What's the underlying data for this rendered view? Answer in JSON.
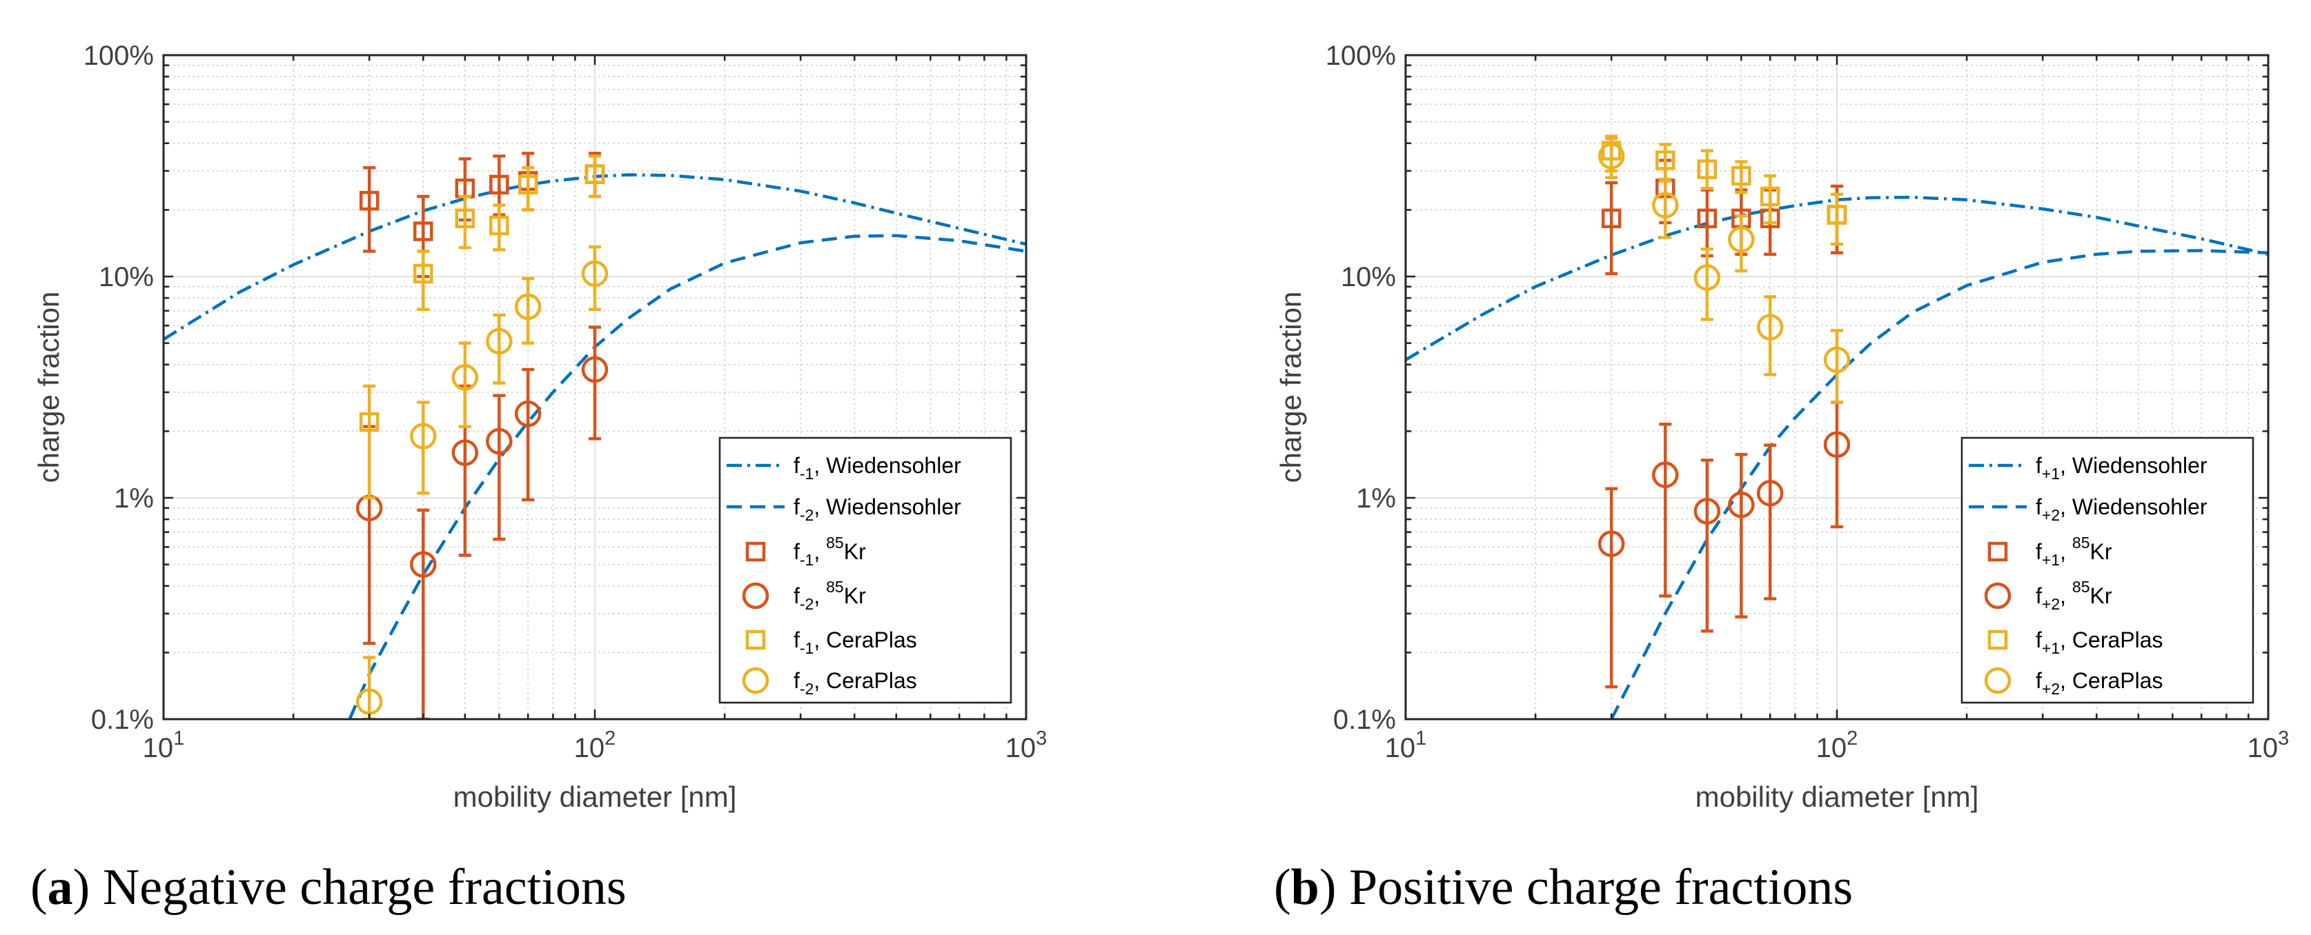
{
  "colors": {
    "wiedensohler": "#0072BD",
    "kr85": "#D95319",
    "ceraplas": "#EDB120",
    "grid": "#d3d3d3",
    "axis": "#262626",
    "text": "#404040"
  },
  "captions": [
    {
      "letter": "a",
      "text": "Negative charge fractions"
    },
    {
      "letter": "b",
      "text": "Positive charge fractions"
    }
  ],
  "chart_data": [
    {
      "type": "scatter",
      "title": "Negative charge fractions",
      "xlabel": "mobility diameter [nm]",
      "ylabel": "charge fraction",
      "xscale": "log",
      "yscale": "log",
      "xlim": [
        10,
        1000
      ],
      "ylim": [
        0.1,
        100
      ],
      "grid": true,
      "x_ticks": [
        {
          "value": 10,
          "base": "10",
          "exp": "1"
        },
        {
          "value": 100,
          "base": "10",
          "exp": "2"
        },
        {
          "value": 1000,
          "base": "10",
          "exp": "3"
        }
      ],
      "y_ticks": [
        {
          "value": 0.1,
          "label": "0.1%"
        },
        {
          "value": 1,
          "label": "1%"
        },
        {
          "value": 10,
          "label": "10%"
        },
        {
          "value": 100,
          "label": "100%"
        }
      ],
      "legend_position": "bottom-right",
      "series": [
        {
          "name": "f-1, Wiedensohler",
          "style": "dashdot",
          "color": "wiedensohler",
          "x": [
            10,
            15,
            20,
            30,
            40,
            50,
            60,
            70,
            80,
            100,
            120,
            150,
            200,
            300,
            400,
            500,
            700,
            1000
          ],
          "y": [
            5.2,
            8.5,
            11.3,
            16.0,
            19.8,
            22.5,
            24.5,
            26.0,
            27.0,
            28.3,
            28.8,
            28.6,
            27.4,
            24.3,
            21.5,
            19.3,
            16.5,
            14.0
          ]
        },
        {
          "name": "f-2, Wiedensohler",
          "style": "dashed",
          "color": "wiedensohler",
          "x": [
            27,
            30,
            35,
            40,
            50,
            60,
            70,
            80,
            100,
            120,
            150,
            200,
            300,
            400,
            500,
            700,
            1000
          ],
          "y": [
            0.1,
            0.16,
            0.28,
            0.45,
            0.9,
            1.5,
            2.2,
            3.0,
            4.8,
            6.5,
            8.8,
            11.5,
            14.2,
            15.2,
            15.3,
            14.5,
            13.0
          ]
        },
        {
          "name": "f-1, 85Kr",
          "marker": "square",
          "color": "kr85",
          "x": [
            30,
            40,
            50,
            60,
            70,
            100
          ],
          "y": [
            22,
            16,
            25,
            26,
            27,
            29
          ],
          "err_low": [
            13,
            10,
            18,
            19,
            20,
            23
          ],
          "err_high": [
            31,
            23,
            34,
            35,
            36,
            36
          ]
        },
        {
          "name": "f-2, 85Kr",
          "marker": "circle",
          "color": "kr85",
          "x": [
            30,
            40,
            50,
            60,
            70,
            100
          ],
          "y": [
            0.9,
            0.5,
            1.6,
            1.8,
            2.4,
            3.8
          ],
          "err_low": [
            0.22,
            0.1,
            0.55,
            0.65,
            0.98,
            1.85
          ],
          "err_high": [
            2.1,
            0.88,
            3.2,
            2.9,
            3.8,
            5.9
          ]
        },
        {
          "name": "f-1, CeraPlas",
          "marker": "square",
          "color": "ceraplas",
          "x": [
            30,
            40,
            50,
            60,
            70,
            100
          ],
          "y": [
            2.2,
            10.3,
            18.3,
            17.0,
            26.0,
            29.0
          ],
          "err_low": [
            1.0,
            7.1,
            13.5,
            13.2,
            20.0,
            23.0
          ],
          "err_high": [
            3.2,
            13.0,
            23.0,
            21.0,
            31.0,
            35.0
          ]
        },
        {
          "name": "f-2, CeraPlas",
          "marker": "circle",
          "color": "ceraplas",
          "x": [
            30,
            40,
            50,
            60,
            70,
            100
          ],
          "y": [
            0.12,
            1.9,
            3.5,
            5.1,
            7.3,
            10.3
          ],
          "err_low": [
            0.1,
            1.05,
            2.1,
            3.3,
            5.0,
            7.1
          ],
          "err_high": [
            0.19,
            2.7,
            5.0,
            6.7,
            9.8,
            13.6
          ]
        }
      ],
      "legend": [
        {
          "sym": "dashdot",
          "color": "wiedensohler",
          "prefix": "f",
          "sub": "-1",
          "mid": ", ",
          "sup": "",
          "suffix": "Wiedensohler"
        },
        {
          "sym": "dashed",
          "color": "wiedensohler",
          "prefix": "f",
          "sub": "-2",
          "mid": ", ",
          "sup": "",
          "suffix": "Wiedensohler"
        },
        {
          "sym": "square",
          "color": "kr85",
          "prefix": "f",
          "sub": "-1",
          "mid": ", ",
          "sup": "85",
          "suffix": "Kr"
        },
        {
          "sym": "circle",
          "color": "kr85",
          "prefix": "f",
          "sub": "-2",
          "mid": ", ",
          "sup": "85",
          "suffix": "Kr"
        },
        {
          "sym": "square",
          "color": "ceraplas",
          "prefix": "f",
          "sub": "-1",
          "mid": ", ",
          "sup": "",
          "suffix": "CeraPlas"
        },
        {
          "sym": "circle",
          "color": "ceraplas",
          "prefix": "f",
          "sub": "-2",
          "mid": ", ",
          "sup": "",
          "suffix": "CeraPlas"
        }
      ]
    },
    {
      "type": "scatter",
      "title": "Positive charge fractions",
      "xlabel": "mobility diameter [nm]",
      "ylabel": "charge fraction",
      "xscale": "log",
      "yscale": "log",
      "xlim": [
        10,
        1000
      ],
      "ylim": [
        0.1,
        100
      ],
      "grid": true,
      "x_ticks": [
        {
          "value": 10,
          "base": "10",
          "exp": "1"
        },
        {
          "value": 100,
          "base": "10",
          "exp": "2"
        },
        {
          "value": 1000,
          "base": "10",
          "exp": "3"
        }
      ],
      "y_ticks": [
        {
          "value": 0.1,
          "label": "0.1%"
        },
        {
          "value": 1,
          "label": "1%"
        },
        {
          "value": 10,
          "label": "10%"
        },
        {
          "value": 100,
          "label": "100%"
        }
      ],
      "legend_position": "bottom-right",
      "series": [
        {
          "name": "f+1, Wiedensohler",
          "style": "dashdot",
          "color": "wiedensohler",
          "x": [
            10,
            15,
            20,
            30,
            40,
            50,
            60,
            70,
            80,
            100,
            120,
            150,
            200,
            300,
            400,
            500,
            700,
            1000
          ],
          "y": [
            4.2,
            6.7,
            9.0,
            12.5,
            15.3,
            17.4,
            18.9,
            20.0,
            20.9,
            22.2,
            22.7,
            22.8,
            22.2,
            20.2,
            18.5,
            16.9,
            14.8,
            12.6
          ]
        },
        {
          "name": "f+2, Wiedensohler",
          "style": "dashed",
          "color": "wiedensohler",
          "x": [
            30,
            35,
            40,
            50,
            60,
            70,
            80,
            100,
            120,
            150,
            200,
            300,
            400,
            500,
            700,
            1000
          ],
          "y": [
            0.1,
            0.18,
            0.3,
            0.65,
            1.1,
            1.7,
            2.3,
            3.6,
            5.0,
            6.9,
            9.1,
            11.6,
            12.6,
            13.0,
            13.1,
            12.8
          ]
        },
        {
          "name": "f+1, 85Kr",
          "marker": "square",
          "color": "kr85",
          "x": [
            30,
            40,
            50,
            60,
            70,
            100
          ],
          "y": [
            18.3,
            25.0,
            18.3,
            18.3,
            18.3,
            19.0
          ],
          "err_low": [
            10.3,
            17.5,
            12.4,
            12.6,
            12.6,
            12.8
          ],
          "err_high": [
            26.5,
            33.5,
            24.6,
            24.6,
            24.6,
            25.6
          ]
        },
        {
          "name": "f+2, 85Kr",
          "marker": "circle",
          "color": "kr85",
          "x": [
            30,
            40,
            50,
            60,
            70,
            100
          ],
          "y": [
            0.62,
            1.27,
            0.87,
            0.93,
            1.05,
            1.74
          ],
          "err_low": [
            0.14,
            0.36,
            0.25,
            0.29,
            0.35,
            0.74
          ],
          "err_high": [
            1.1,
            2.15,
            1.48,
            1.57,
            1.73,
            2.7
          ]
        },
        {
          "name": "f+1, CeraPlas",
          "marker": "square",
          "color": "ceraplas",
          "x": [
            30,
            40,
            50,
            60,
            70,
            100
          ],
          "y": [
            37.0,
            33.5,
            30.5,
            28.5,
            23.0,
            19.0
          ],
          "err_low": [
            30.0,
            27.5,
            25.0,
            24.0,
            17.5,
            14.0
          ],
          "err_high": [
            43.0,
            39.5,
            37.0,
            33.0,
            28.5,
            23.5
          ]
        },
        {
          "name": "f+2, CeraPlas",
          "marker": "circle",
          "color": "ceraplas",
          "x": [
            30,
            40,
            50,
            60,
            70,
            100
          ],
          "y": [
            35.0,
            21.0,
            9.9,
            14.7,
            5.9,
            4.2
          ],
          "err_low": [
            28.0,
            15.0,
            6.4,
            10.6,
            3.6,
            2.7
          ],
          "err_high": [
            42.0,
            27.0,
            13.3,
            18.8,
            8.1,
            5.7
          ]
        }
      ],
      "legend": [
        {
          "sym": "dashdot",
          "color": "wiedensohler",
          "prefix": "f",
          "sub": "+1",
          "mid": ", ",
          "sup": "",
          "suffix": "Wiedensohler"
        },
        {
          "sym": "dashed",
          "color": "wiedensohler",
          "prefix": "f",
          "sub": "+2",
          "mid": ", ",
          "sup": "",
          "suffix": "Wiedensohler"
        },
        {
          "sym": "square",
          "color": "kr85",
          "prefix": "f",
          "sub": "+1",
          "mid": ", ",
          "sup": "85",
          "suffix": "Kr"
        },
        {
          "sym": "circle",
          "color": "kr85",
          "prefix": "f",
          "sub": "+2",
          "mid": ", ",
          "sup": "85",
          "suffix": "Kr"
        },
        {
          "sym": "square",
          "color": "ceraplas",
          "prefix": "f",
          "sub": "+1",
          "mid": ", ",
          "sup": "",
          "suffix": "CeraPlas"
        },
        {
          "sym": "circle",
          "color": "ceraplas",
          "prefix": "f",
          "sub": "+2",
          "mid": ", ",
          "sup": "",
          "suffix": "CeraPlas"
        }
      ]
    }
  ]
}
